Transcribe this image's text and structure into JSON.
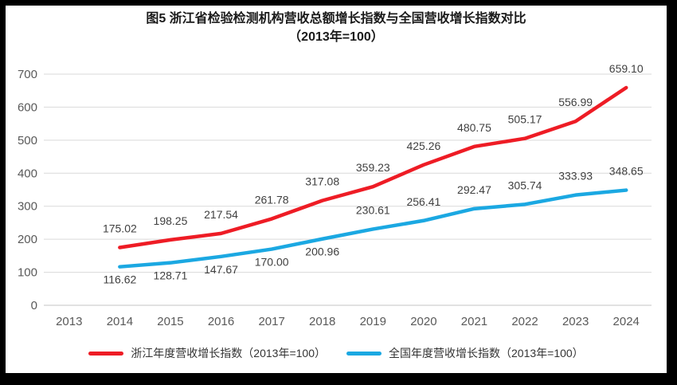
{
  "title": {
    "line1": "图5  浙江省检验检测机构营收总额增长指数与全国营收增长指数对比",
    "line2": "（2013年=100）"
  },
  "chart_data": {
    "type": "line",
    "title": "图5 浙江省检验检测机构营收总额增长指数与全国营收增长指数对比（2013年=100）",
    "categories": [
      "2013",
      "2014",
      "2015",
      "2016",
      "2017",
      "2018",
      "2019",
      "2020",
      "2021",
      "2022",
      "2023",
      "2024"
    ],
    "series": [
      {
        "key": "zhejiang",
        "name": "浙江年度营收增长指数（2013年=100）",
        "color": "#ee1c25",
        "start_category": "2014",
        "values": [
          175.02,
          198.25,
          217.54,
          261.78,
          317.08,
          359.23,
          425.26,
          480.75,
          505.17,
          556.99,
          659.1
        ],
        "labels_below_indices": []
      },
      {
        "key": "national",
        "name": "全国年度营收增长指数（2013年=100）",
        "color": "#1ba8e2",
        "start_category": "2014",
        "values": [
          116.62,
          128.71,
          147.67,
          170.0,
          200.96,
          230.61,
          256.41,
          292.47,
          305.74,
          333.93,
          348.65
        ],
        "labels_below_indices": [
          0,
          1,
          2,
          3,
          4
        ]
      }
    ],
    "xlabel": "",
    "ylabel": "",
    "ylim": [
      0,
      700
    ],
    "yticks": [
      0,
      100,
      200,
      300,
      400,
      500,
      600,
      700
    ],
    "grid": "horizontal",
    "legend_position": "bottom",
    "colors": {
      "grid": "#d9d9d9",
      "axis_line": "#c3c3c3",
      "axis_text": "#595959",
      "data_label_text": "#3f3f3f"
    }
  }
}
